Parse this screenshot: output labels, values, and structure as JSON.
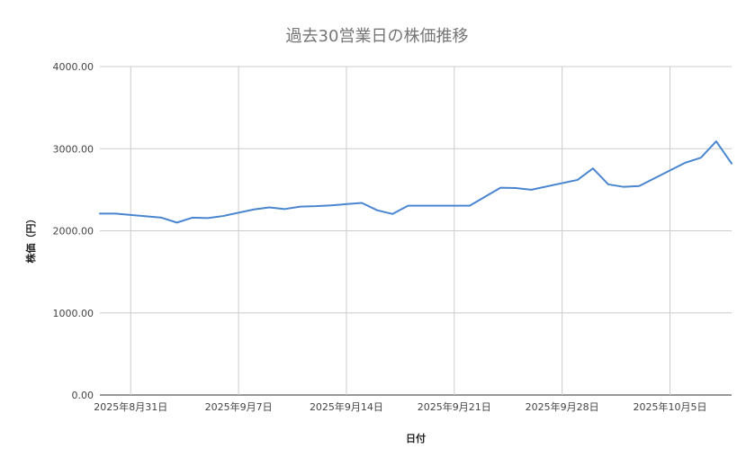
{
  "chart_data": {
    "type": "line",
    "title": "過去30営業日の株価推移",
    "xlabel": "日付",
    "ylabel": "株価（円）",
    "ylim": [
      0,
      4000
    ],
    "y_ticks": [
      "0.00",
      "1000.00",
      "2000.00",
      "3000.00",
      "4000.00"
    ],
    "x_ticks": [
      {
        "date": "2025-08-31",
        "label": "2025年8月31日"
      },
      {
        "date": "2025-09-07",
        "label": "2025年9月7日"
      },
      {
        "date": "2025-09-14",
        "label": "2025年9月14日"
      },
      {
        "date": "2025-09-21",
        "label": "2025年9月21日"
      },
      {
        "date": "2025-09-28",
        "label": "2025年9月28日"
      },
      {
        "date": "2025-10-05",
        "label": "2025年10月5日"
      }
    ],
    "x": [
      "2025-08-29",
      "2025-08-30",
      "2025-09-02",
      "2025-09-03",
      "2025-09-04",
      "2025-09-05",
      "2025-09-06",
      "2025-09-08",
      "2025-09-09",
      "2025-09-10",
      "2025-09-11",
      "2025-09-12",
      "2025-09-13",
      "2025-09-15",
      "2025-09-16",
      "2025-09-17",
      "2025-09-18",
      "2025-09-19",
      "2025-09-22",
      "2025-09-24",
      "2025-09-25",
      "2025-09-26",
      "2025-09-29",
      "2025-09-30",
      "2025-10-01",
      "2025-10-02",
      "2025-10-03",
      "2025-10-06",
      "2025-10-07",
      "2025-10-08",
      "2025-10-09"
    ],
    "series": [
      {
        "values": [
          2210,
          2210,
          2160,
          2100,
          2160,
          2155,
          2180,
          2260,
          2285,
          2265,
          2295,
          2300,
          2310,
          2340,
          2250,
          2205,
          2305,
          2305,
          2305,
          2525,
          2520,
          2500,
          2620,
          2760,
          2565,
          2535,
          2545,
          2830,
          2890,
          3090,
          2820
        ]
      }
    ],
    "line_color": "#4a86d0",
    "grid": true
  }
}
